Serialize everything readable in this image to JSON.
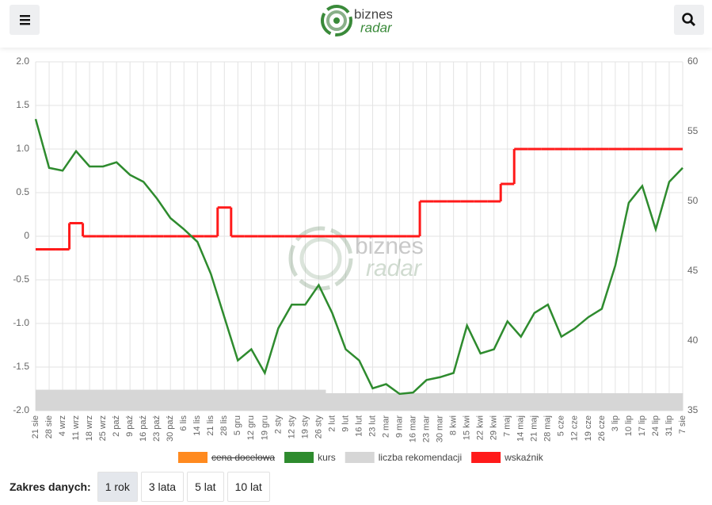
{
  "header": {
    "logo_top": "biznes",
    "logo_bottom": "radar"
  },
  "chart_data": {
    "type": "line",
    "categories": [
      "21 sie",
      "28 sie",
      "4 wrz",
      "11 wrz",
      "18 wrz",
      "25 wrz",
      "2 paź",
      "9 paź",
      "16 paź",
      "23 paź",
      "30 paź",
      "6 lis",
      "14 lis",
      "21 lis",
      "28 lis",
      "5 gru",
      "12 gru",
      "19 gru",
      "2 sty",
      "12 sty",
      "19 sty",
      "26 sty",
      "2 lut",
      "9 lut",
      "16 lut",
      "23 lut",
      "2 mar",
      "9 mar",
      "16 mar",
      "23 mar",
      "30 mar",
      "8 kwi",
      "15 kwi",
      "22 kwi",
      "29 kwi",
      "7 maj",
      "14 maj",
      "21 maj",
      "28 maj",
      "5 cze",
      "12 cze",
      "19 cze",
      "26 cze",
      "3 lip",
      "10 lip",
      "17 lip",
      "24 lip",
      "31 lip",
      "7 sie"
    ],
    "ylim": [
      -2,
      2
    ],
    "yticks": [
      {
        "value": 2,
        "label": "2.0"
      },
      1.5,
      {
        "value": 1,
        "label": "1.0"
      },
      0.5,
      0,
      -0.5,
      {
        "value": -1,
        "label": "-1.0"
      },
      -1.5,
      {
        "value": -2,
        "label": "-2.0"
      }
    ],
    "y2lim": [
      35,
      60
    ],
    "y2ticks": [
      35,
      40,
      45,
      50,
      55,
      60
    ],
    "grid": true,
    "legend": "bottom",
    "series": [
      {
        "name": "cena docelowa",
        "color": "#ff8a1f",
        "hidden": true,
        "values": [
          null,
          null,
          null,
          null,
          null,
          null,
          null,
          null,
          null,
          null,
          null,
          null,
          null,
          null,
          null,
          null,
          null,
          null,
          null,
          null,
          null,
          null,
          null,
          null,
          null,
          null,
          null,
          null,
          null,
          null,
          null,
          null,
          null,
          null,
          null,
          null,
          null,
          null,
          null,
          null,
          null,
          null,
          null,
          null,
          null,
          null,
          null,
          null,
          null
        ]
      },
      {
        "name": "kurs",
        "color": "#2e8b2e",
        "axis": "y2",
        "style": "line",
        "values": [
          55.9,
          52.4,
          52.2,
          53.6,
          52.5,
          52.5,
          52.8,
          51.9,
          51.4,
          50.2,
          48.8,
          48.0,
          47.1,
          44.8,
          41.7,
          38.6,
          39.4,
          37.7,
          40.9,
          42.6,
          42.6,
          44.0,
          42.0,
          39.4,
          38.6,
          36.6,
          36.9,
          36.2,
          36.3,
          37.2,
          37.4,
          37.7,
          41.1,
          39.1,
          39.4,
          41.4,
          40.3,
          42.0,
          42.6,
          40.3,
          40.9,
          41.7,
          42.3,
          45.4,
          49.9,
          51.1,
          48.0,
          51.4,
          52.4
        ]
      },
      {
        "name": "liczba rekomendacji",
        "color": "#d6d6d6",
        "style": "area",
        "values": [
          -1.76,
          -1.76,
          -1.76,
          -1.76,
          -1.76,
          -1.76,
          -1.76,
          -1.76,
          -1.76,
          -1.76,
          -1.76,
          -1.76,
          -1.76,
          -1.76,
          -1.76,
          -1.76,
          -1.76,
          -1.76,
          -1.76,
          -1.76,
          -1.76,
          -1.76,
          -1.8,
          -1.8,
          -1.8,
          -1.8,
          -1.8,
          -1.8,
          -1.8,
          -1.8,
          -1.8,
          -1.8,
          -1.8,
          -1.8,
          -1.8,
          -1.8,
          -1.8,
          -1.8,
          -1.8,
          -1.8,
          -1.8,
          -1.8,
          -1.8,
          -1.8,
          -1.8,
          -1.8,
          -1.8,
          -1.8,
          -1.8
        ]
      },
      {
        "name": "wskaźnik",
        "color": "#ff1a1a",
        "style": "step",
        "values": [
          -0.15,
          -0.15,
          -0.15,
          0.15,
          0,
          0,
          0,
          0,
          0,
          0,
          0,
          0,
          0,
          0,
          0.33,
          0,
          0,
          0,
          0,
          0,
          0,
          0,
          0,
          0,
          0,
          0,
          0,
          0,
          0,
          0.4,
          0.4,
          0.4,
          0.4,
          0.4,
          0.4,
          0.6,
          1,
          1,
          1,
          1,
          1,
          1,
          1,
          1,
          1,
          1,
          1,
          1,
          1
        ]
      }
    ]
  },
  "range": {
    "label": "Zakres danych:",
    "options": [
      "1 rok",
      "3 lata",
      "5 lat",
      "10 lat"
    ],
    "active": 0
  }
}
